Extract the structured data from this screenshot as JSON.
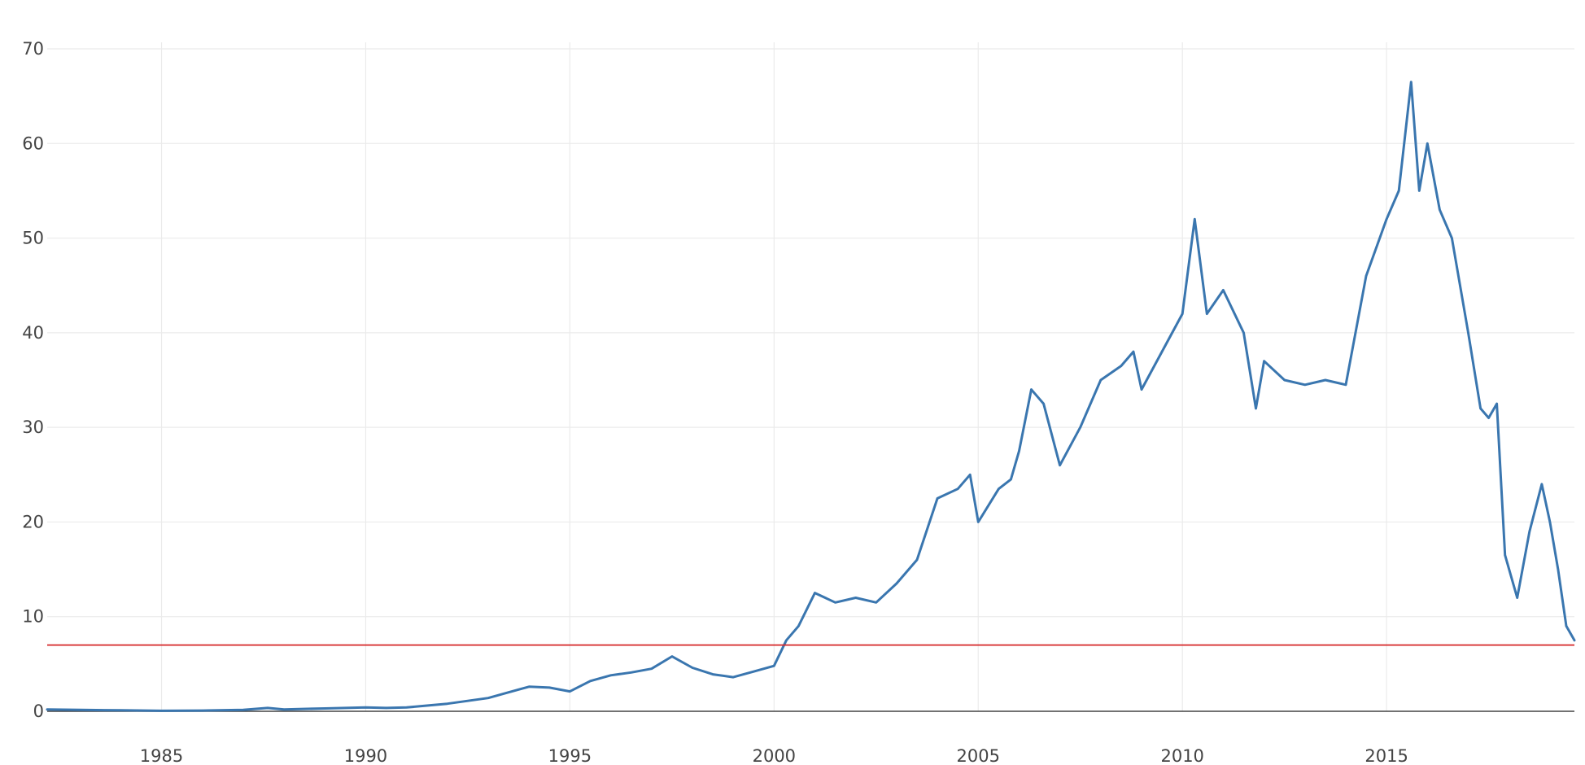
{
  "chart_data": {
    "type": "line",
    "title": "",
    "xlabel": "",
    "ylabel": "",
    "xlim": [
      1982.2,
      2019.6
    ],
    "ylim": [
      0,
      70
    ],
    "grid": true,
    "legend": "none",
    "x_ticks": [
      1985,
      1990,
      1995,
      2000,
      2005,
      2010,
      2015
    ],
    "x_tick_labels": [
      "1985",
      "1990",
      "1995",
      "2000",
      "2005",
      "2010",
      "2015"
    ],
    "y_ticks": [
      0,
      10,
      20,
      30,
      40,
      50,
      60,
      70
    ],
    "y_tick_labels": [
      "0",
      "10",
      "20",
      "30",
      "40",
      "50",
      "60",
      "70"
    ],
    "series": [
      {
        "color": "#3a76af",
        "x": [
          1982.2,
          1983.0,
          1984.0,
          1985.0,
          1986.0,
          1987.0,
          1987.6,
          1988.0,
          1989.0,
          1990.0,
          1990.5,
          1991.0,
          1991.5,
          1992.0,
          1992.5,
          1993.0,
          1993.5,
          1994.0,
          1994.5,
          1995.0,
          1995.5,
          1996.0,
          1996.5,
          1997.0,
          1997.5,
          1998.0,
          1998.5,
          1999.0,
          1999.5,
          2000.0,
          2000.3,
          2000.6,
          2001.0,
          2001.5,
          2002.0,
          2002.5,
          2003.0,
          2003.5,
          2004.0,
          2004.5,
          2004.8,
          2005.0,
          2005.5,
          2005.8,
          2006.0,
          2006.3,
          2006.6,
          2007.0,
          2007.5,
          2008.0,
          2008.5,
          2008.8,
          2009.0,
          2009.5,
          2010.0,
          2010.3,
          2010.6,
          2011.0,
          2011.5,
          2011.8,
          2012.0,
          2012.5,
          2013.0,
          2013.5,
          2014.0,
          2014.5,
          2015.0,
          2015.3,
          2015.6,
          2015.8,
          2016.0,
          2016.3,
          2016.6,
          2017.0,
          2017.3,
          2017.5,
          2017.7,
          2017.9,
          2018.2,
          2018.5,
          2018.8,
          2019.0,
          2019.2,
          2019.4,
          2019.6
        ],
        "values": [
          0.2,
          0.15,
          0.1,
          0.05,
          0.08,
          0.15,
          0.35,
          0.2,
          0.3,
          0.4,
          0.35,
          0.4,
          0.6,
          0.8,
          1.1,
          1.4,
          2.0,
          2.6,
          2.5,
          2.1,
          3.2,
          3.8,
          4.1,
          4.5,
          5.8,
          4.6,
          3.9,
          3.6,
          4.2,
          4.8,
          7.5,
          9.0,
          12.5,
          11.5,
          12.0,
          11.5,
          13.5,
          16.0,
          22.5,
          23.5,
          25.0,
          20.0,
          23.5,
          24.5,
          27.5,
          34.0,
          32.5,
          26.0,
          30.0,
          35.0,
          36.5,
          38.0,
          34.0,
          38.0,
          42.0,
          52.0,
          42.0,
          44.5,
          40.0,
          32.0,
          37.0,
          35.0,
          34.5,
          35.0,
          34.5,
          46.0,
          52.0,
          55.0,
          66.5,
          55.0,
          60.0,
          53.0,
          50.0,
          40.0,
          32.0,
          31.0,
          32.5,
          16.5,
          12.0,
          19.0,
          24.0,
          20.0,
          15.0,
          9.0,
          7.5
        ]
      }
    ],
    "reference_line": {
      "value": 7,
      "color": "#d62728"
    },
    "zero_line_color": "#444444",
    "grid_color": "#ebebeb"
  }
}
